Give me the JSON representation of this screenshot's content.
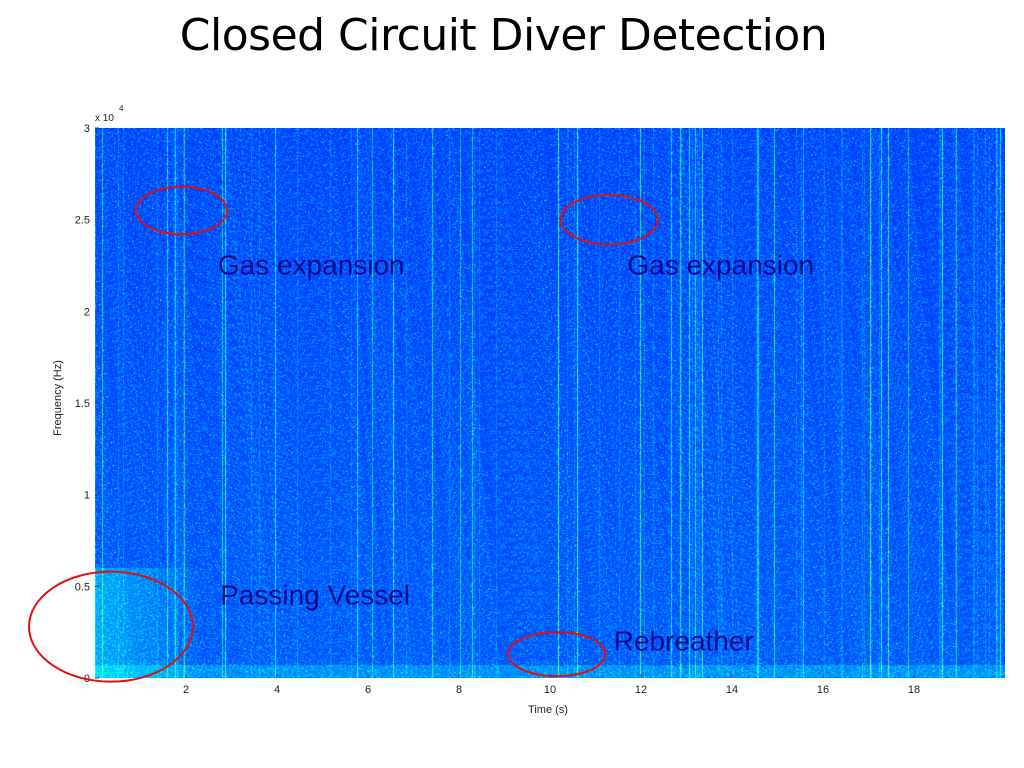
{
  "slide": {
    "title": "Closed Circuit Diver Detection"
  },
  "chart_data": {
    "type": "heatmap",
    "subtype": "spectrogram",
    "title": "",
    "xlabel": "Time (s)",
    "ylabel": "Frequency (Hz)",
    "y_exponent_label": "x 10",
    "y_exponent_power": "4",
    "xlim": [
      0,
      20
    ],
    "ylim": [
      0,
      30000
    ],
    "x_ticks": [
      {
        "value": 2,
        "label": "2"
      },
      {
        "value": 4,
        "label": "4"
      },
      {
        "value": 6,
        "label": "6"
      },
      {
        "value": 8,
        "label": "8"
      },
      {
        "value": 10,
        "label": "10"
      },
      {
        "value": 12,
        "label": "12"
      },
      {
        "value": 14,
        "label": "14"
      },
      {
        "value": 16,
        "label": "16"
      },
      {
        "value": 18,
        "label": "18"
      }
    ],
    "y_ticks": [
      {
        "value": 0,
        "label": "0"
      },
      {
        "value": 5000,
        "label": "0.5"
      },
      {
        "value": 10000,
        "label": "1"
      },
      {
        "value": 15000,
        "label": "1.5"
      },
      {
        "value": 20000,
        "label": "2"
      },
      {
        "value": 25000,
        "label": "2.5"
      },
      {
        "value": 30000,
        "label": "3"
      }
    ],
    "colormap": "jet",
    "background_color": "#0b18b0",
    "annotations": [
      {
        "id": "gas-expansion-1",
        "text": "Gas expansion",
        "label_x": 2.7,
        "label_y": 22000,
        "circle_cx": 1.9,
        "circle_cy": 25500,
        "circle_rt": 1.0,
        "circle_rf": 1300
      },
      {
        "id": "gas-expansion-2",
        "text": "Gas expansion",
        "label_x": 11.7,
        "label_y": 22000,
        "circle_cx": 11.3,
        "circle_cy": 25000,
        "circle_rt": 1.07,
        "circle_rf": 1350
      },
      {
        "id": "passing-vessel",
        "text": "Passing Vessel",
        "label_x": 2.75,
        "label_y": 4000,
        "circle_cx": 0.35,
        "circle_cy": 2800,
        "circle_rt": 1.8,
        "circle_rf": 3000
      },
      {
        "id": "rebreather",
        "text": "Rebreather",
        "label_x": 11.4,
        "label_y": 1500,
        "circle_cx": 10.15,
        "circle_cy": 1300,
        "circle_rt": 1.07,
        "circle_rf": 1200
      }
    ]
  }
}
